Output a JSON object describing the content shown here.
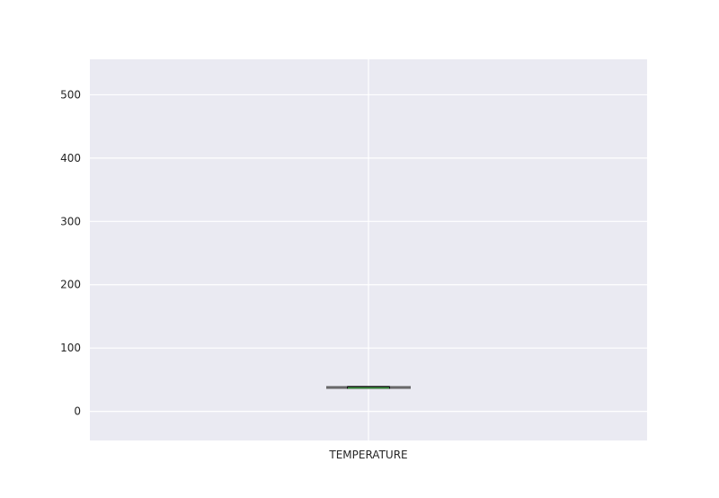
{
  "chart_data": {
    "type": "box",
    "title": "",
    "xlabel": "",
    "ylabel": "",
    "categories": [
      "TEMPERATURE"
    ],
    "ylim": [
      -46,
      556
    ],
    "yticks": [
      0,
      100,
      200,
      300,
      400,
      500
    ],
    "grid": true,
    "boxes": [
      {
        "name": "TEMPERATURE",
        "whisker_low": 36.5,
        "q1": 36.7,
        "median": 37.0,
        "q3": 38.8,
        "whisker_high": 38.8
      }
    ]
  },
  "colors": {
    "background": "#eaeaf2",
    "grid": "#ffffff",
    "box": "#000000",
    "median": "#4caf50",
    "whisker": "#4a4a4a"
  }
}
